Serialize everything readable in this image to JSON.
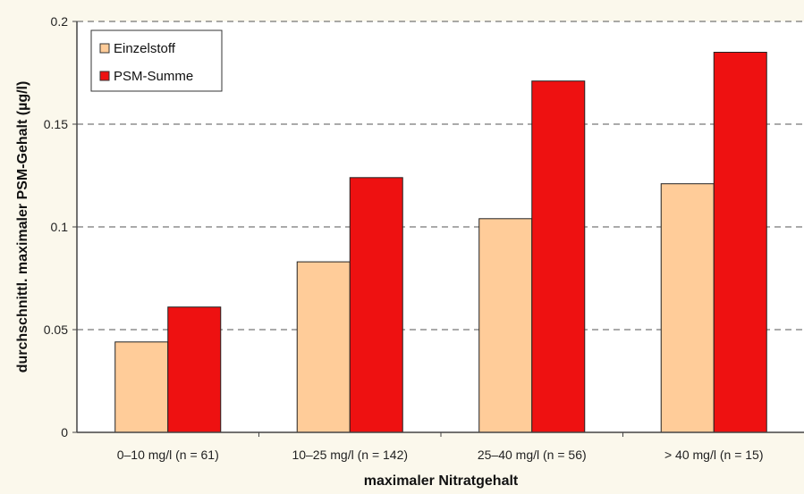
{
  "chart_data": {
    "type": "bar",
    "title": "",
    "xlabel": "maximaler Nitratgehalt",
    "ylabel": "durchschnittl. maximaler PSM-Gehalt (µg/l)",
    "categories": [
      "0–10 mg/l (n = 61)",
      "10–25 mg/l (n = 142)",
      "25–40 mg/l (n = 56)",
      "> 40 mg/l (n = 15)"
    ],
    "series": [
      {
        "name": "Einzelstoff",
        "color": "#ffcc99",
        "values": [
          0.044,
          0.083,
          0.104,
          0.121
        ]
      },
      {
        "name": "PSM-Summe",
        "color": "#ee1111",
        "values": [
          0.061,
          0.124,
          0.171,
          0.185
        ]
      }
    ],
    "ylim": [
      0,
      0.2
    ],
    "yticks": [
      0,
      0.05,
      0.1,
      0.15,
      0.2
    ],
    "ytick_labels": [
      "0",
      "0.05",
      "0.1",
      "0.15",
      "0.2"
    ],
    "grid": "horizontal dashed",
    "legend_position": "top-left",
    "plot_background": "#ffffff",
    "page_background": "#fbf8ec"
  }
}
